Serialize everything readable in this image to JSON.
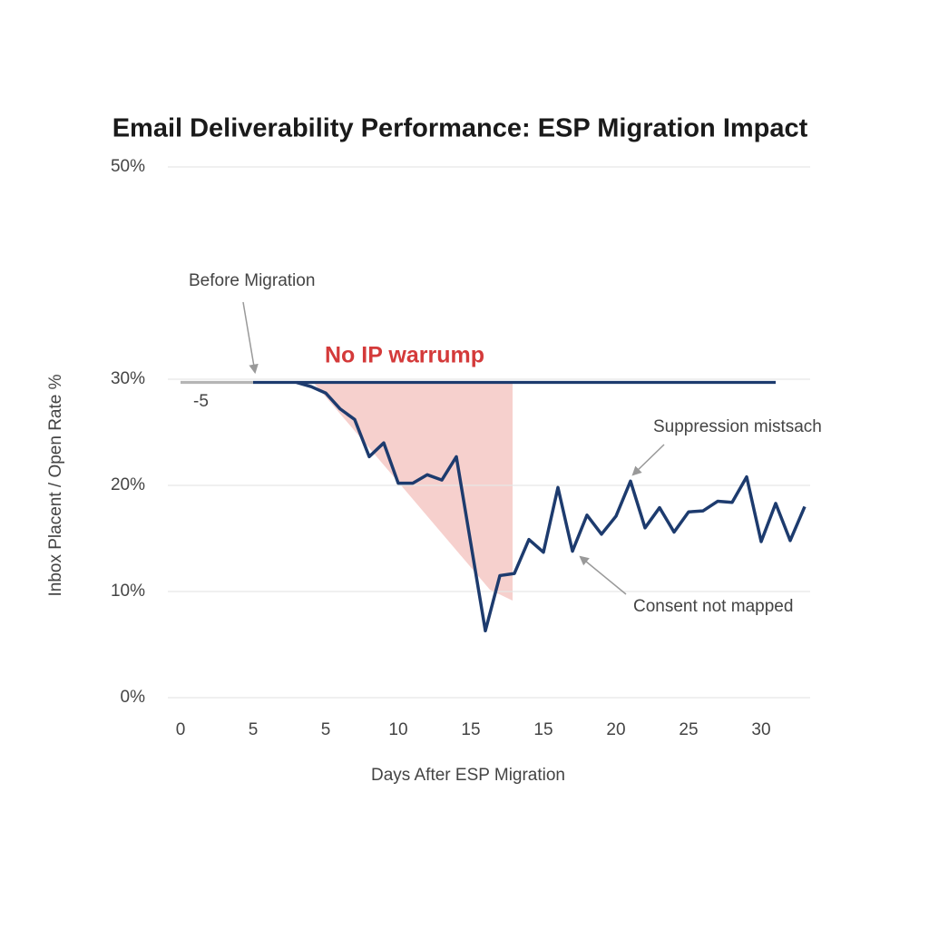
{
  "chart_data": {
    "type": "line",
    "title": "Email Deliverability Performance: ESP Migration Impact",
    "x_label": "Days After ESP Migration",
    "y_label": "Inbox Placent / Open Rate %",
    "categories": [
      "0",
      null,
      null,
      null,
      null,
      "5",
      null,
      null,
      null,
      null,
      "5",
      null,
      null,
      null,
      null,
      "10",
      null,
      null,
      null,
      null,
      "15",
      null,
      null,
      null,
      null,
      "15",
      null,
      null,
      null,
      null,
      "20",
      null,
      null,
      null,
      null,
      "25",
      null,
      null,
      null,
      null,
      "30",
      null,
      null,
      null
    ],
    "ylim": [
      0,
      50
    ],
    "yticks": [
      {
        "value": 0,
        "label": "0%"
      },
      {
        "value": 10,
        "label": "10%"
      },
      {
        "value": 20,
        "label": "20%"
      },
      {
        "value": 30,
        "label": "30%"
      },
      {
        "value": 50,
        "label": "50%"
      }
    ],
    "grid": true,
    "series": [
      {
        "color": "#b5b5b5",
        "values": [
          29.7,
          29.7,
          29.7,
          29.7,
          29.7,
          29.7,
          null,
          null,
          null,
          null,
          null,
          null,
          null,
          null,
          null,
          null,
          null,
          null,
          null,
          null,
          null,
          null,
          null,
          null,
          null,
          null,
          null,
          null,
          null,
          null,
          null,
          null,
          null,
          null,
          null,
          null,
          null,
          null,
          null,
          null,
          null,
          null,
          null,
          null
        ]
      },
      {
        "color": "#1d3b6e",
        "values": [
          null,
          null,
          null,
          null,
          null,
          29.7,
          29.7,
          29.7,
          29.7,
          29.7,
          29.7,
          29.7,
          29.7,
          29.7,
          29.7,
          29.7,
          29.7,
          29.7,
          29.7,
          29.7,
          29.7,
          29.7,
          29.7,
          29.7,
          29.7,
          29.7,
          29.7,
          29.7,
          29.7,
          29.7,
          29.7,
          29.7,
          29.7,
          29.7,
          29.7,
          29.7,
          29.7,
          29.7,
          29.7,
          29.7,
          29.7,
          29.7,
          null,
          null
        ]
      },
      {
        "color": "#1d3b6e",
        "values": [
          null,
          null,
          null,
          null,
          null,
          null,
          null,
          null,
          29.7,
          29.3,
          28.7,
          27.2,
          26.2,
          22.7,
          24.0,
          20.2,
          20.2,
          21.0,
          20.5,
          22.7,
          14.5,
          6.3,
          11.5,
          11.7,
          14.9,
          13.7,
          19.8,
          13.8,
          17.2,
          15.4,
          17.1,
          20.4,
          16.0,
          17.9,
          15.6,
          17.5,
          17.6,
          18.5,
          18.4,
          20.8,
          14.7,
          18.3,
          14.8,
          18.0
        ]
      }
    ],
    "annotations": [
      "Before Migration",
      "No IP warrump",
      "-5",
      "Suppression mistsach",
      "Consent not mapped"
    ]
  }
}
